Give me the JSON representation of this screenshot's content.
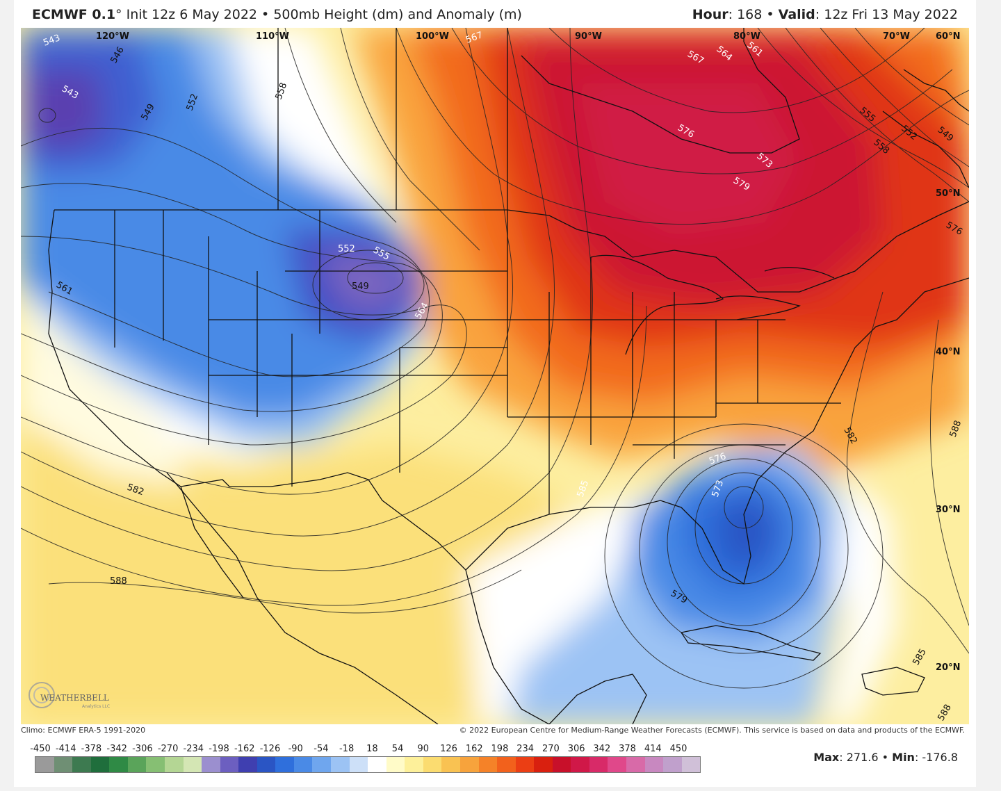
{
  "header": {
    "model": "ECMWF 0.1",
    "degree": "°",
    "init": "Init 12z 6 May 2022",
    "bullet": "•",
    "field": "500mb Height (dm) and Anomaly (m)",
    "hour_label": "Hour",
    "hour_value": ": 168",
    "valid_label": "Valid",
    "valid_value": ": 12z Fri 13 May 2022"
  },
  "map": {
    "lon_labels": [
      "120°W",
      "110°W",
      "100°W",
      "90°W",
      "80°W",
      "70°W"
    ],
    "lat_labels": [
      "60°N",
      "50°N",
      "40°N",
      "30°N",
      "20°N"
    ],
    "contour_labels": [
      "543",
      "543",
      "546",
      "549",
      "552",
      "558",
      "567",
      "567",
      "564",
      "561",
      "576",
      "573",
      "579",
      "555",
      "552",
      "558",
      "549",
      "576",
      "555",
      "552",
      "549",
      "564",
      "561",
      "585",
      "582",
      "582",
      "588",
      "588",
      "576",
      "573",
      "579",
      "585",
      "588"
    ],
    "logo_text": "WEATHERBELL",
    "logo_sub": "Analytics LLC"
  },
  "footer": {
    "climo": "Climo: ECMWF ERA-5 1991-2020",
    "copyright": "© 2022 European Centre for Medium-Range Weather Forecasts (ECMWF). This service is based on data and products of the ECMWF."
  },
  "colorbar": {
    "ticks": [
      "-450",
      "-414",
      "-378",
      "-342",
      "-306",
      "-270",
      "-234",
      "-198",
      "-162",
      "-126",
      "-90",
      "-54",
      "-18",
      "18",
      "54",
      "90",
      "126",
      "162",
      "198",
      "234",
      "270",
      "306",
      "342",
      "378",
      "414",
      "450"
    ],
    "colors": [
      "#9a9a9a",
      "#6f8f74",
      "#3d7a50",
      "#1f6e3c",
      "#2f8a45",
      "#5aa45a",
      "#86bf73",
      "#b4d694",
      "#d4e6b4",
      "#9b8fcf",
      "#6c5fc0",
      "#3f3fb0",
      "#2a55c4",
      "#2f6fdc",
      "#4a8ae6",
      "#6fa6ee",
      "#9cc3f4",
      "#cde0f8",
      "#ffffff",
      "#fffbc8",
      "#fdf09a",
      "#fbdc70",
      "#f9c252",
      "#f7a33c",
      "#f58228",
      "#f2611c",
      "#eb3e14",
      "#d9200f",
      "#c8102a",
      "#d01848",
      "#d82a68",
      "#e0488a",
      "#d86aa8",
      "#c888c0",
      "#c0a0cc",
      "#d0c0d8"
    ],
    "max_label": "Max",
    "max_value": ": 271.6",
    "min_label": "Min",
    "min_value": ": -176.8"
  }
}
